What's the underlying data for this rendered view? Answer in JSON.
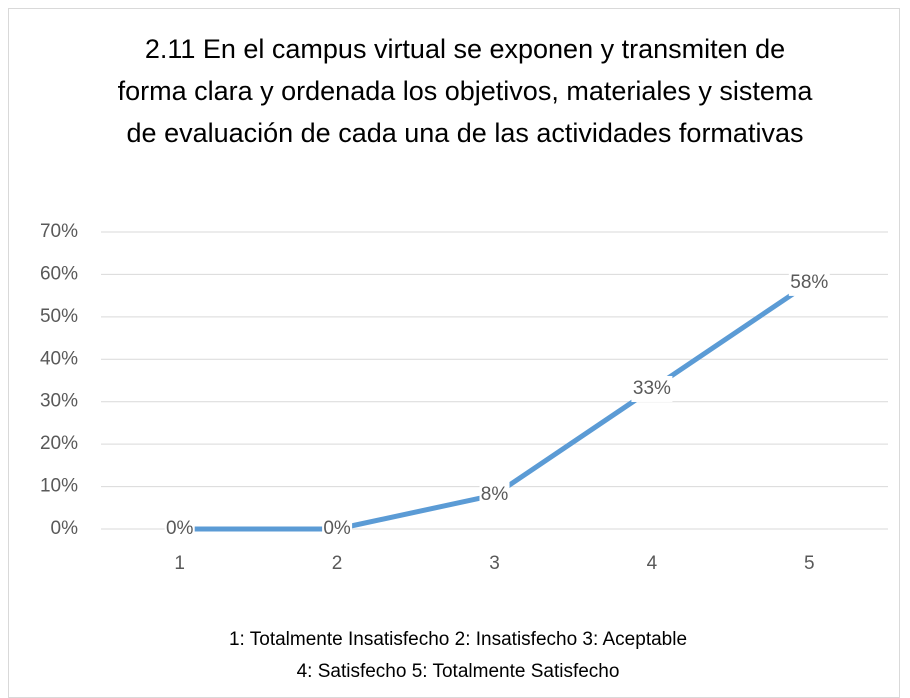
{
  "chart_data": {
    "type": "line",
    "title": "2.11 En el campus virtual se exponen y transmiten de forma clara y ordenada los objetivos, materiales y sistema de evaluación de cada una de las actividades formativas",
    "categories": [
      "1",
      "2",
      "3",
      "4",
      "5"
    ],
    "series": [
      {
        "name": "2.11",
        "color": "#5b9bd5",
        "values": [
          0,
          0,
          8,
          33,
          58
        ],
        "value_labels": [
          "0%",
          "0%",
          "8%",
          "33%",
          "58%"
        ]
      }
    ],
    "ylim": [
      0,
      70
    ],
    "yticks": [
      {
        "value": 0,
        "label": "0%"
      },
      {
        "value": 10,
        "label": "10%"
      },
      {
        "value": 20,
        "label": "20%"
      },
      {
        "value": 30,
        "label": "30%"
      },
      {
        "value": 40,
        "label": "40%"
      },
      {
        "value": 50,
        "label": "50%"
      },
      {
        "value": 60,
        "label": "60%"
      },
      {
        "value": 70,
        "label": "70%"
      }
    ],
    "grid": true,
    "notes": [
      "1: Totalmente Insatisfecho  2: Insatisfecho  3: Aceptable",
      "4: Satisfecho  5: Totalmente Satisfecho"
    ]
  }
}
